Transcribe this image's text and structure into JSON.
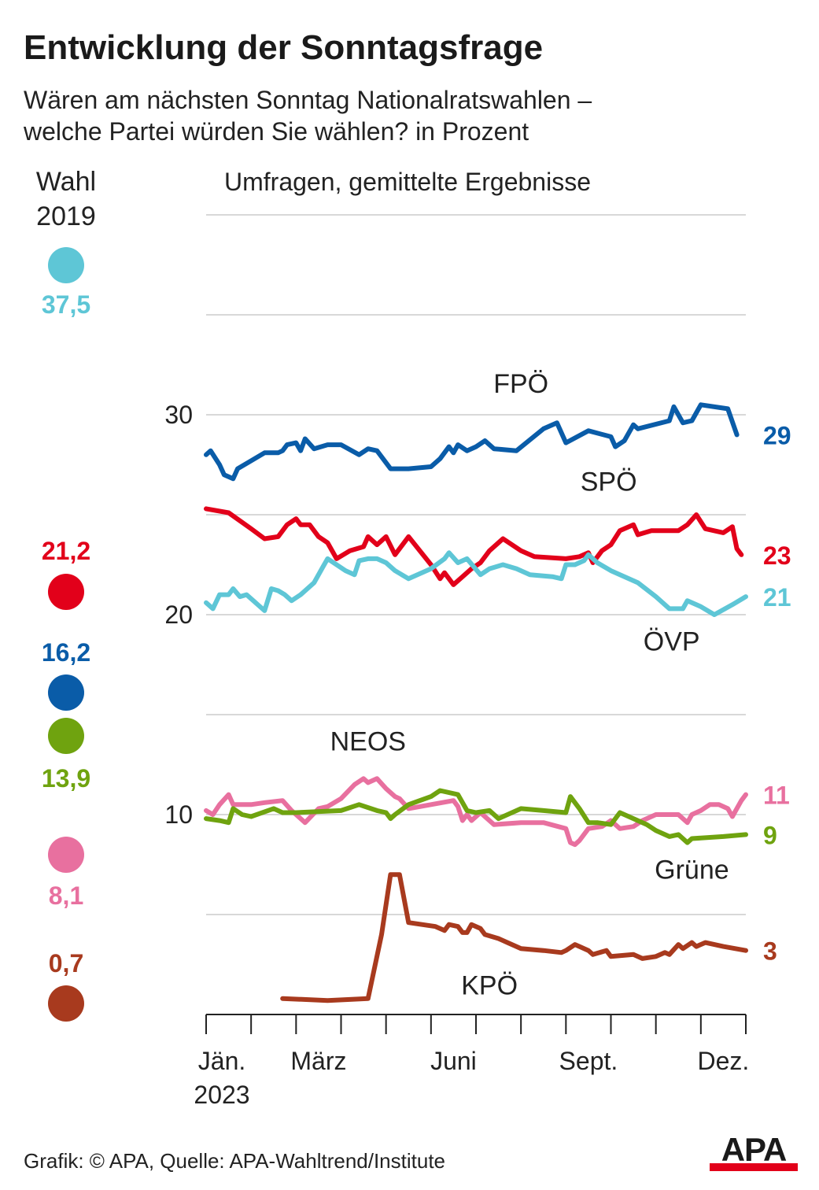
{
  "title": "Entwicklung der Sonntagsfrage",
  "subtitle_line1": "Wären am nächsten Sonntag Nationalratswahlen –",
  "subtitle_line2": "welche Partei würden Sie wählen? in Prozent",
  "source": "Grafik: © APA, Quelle: APA-Wahltrend/Institute",
  "logo_text": "APA",
  "chart_data": {
    "type": "line",
    "title": "Umfragen, gemittelte Ergebnisse",
    "x_unit": "months since start of January 2023",
    "xlim": [
      0,
      12
    ],
    "ylim": [
      0,
      40
    ],
    "y_ticks": [
      10,
      20,
      30
    ],
    "grid_values": [
      5,
      10,
      15,
      20,
      25,
      30,
      35,
      40
    ],
    "x_tick_labels": [
      {
        "label_key": "jan",
        "x": 0.35
      },
      {
        "label_key": "maerz",
        "x": 2.5
      },
      {
        "label_key": "juni",
        "x": 5.5
      },
      {
        "label_key": "sept",
        "x": 8.5
      },
      {
        "label_key": "dez",
        "x": 11.5
      }
    ],
    "tick_text": {
      "jan": "Jän.",
      "jan_year": "2023",
      "maerz": "März",
      "juni": "Juni",
      "sept": "Sept.",
      "dez": "Dez."
    },
    "election_header": [
      "Wahl",
      "2019"
    ],
    "election_2019": [
      {
        "party": "ÖVP",
        "value": "37,5",
        "color": "#5ec6d6"
      },
      {
        "party": "SPÖ",
        "value": "21,2",
        "color": "#e2001a"
      },
      {
        "party": "FPÖ",
        "value": "16,2",
        "color": "#0a5ca8"
      },
      {
        "party": "Grüne",
        "value": "13,9",
        "color": "#6fa30f"
      },
      {
        "party": "NEOS",
        "value": "8,1",
        "color": "#e8709f"
      },
      {
        "party": "KPÖ",
        "value": "0,7",
        "color": "#a83a1e"
      }
    ],
    "series": [
      {
        "name": "FPÖ",
        "color": "#0a5ca8",
        "end_label": "29",
        "points": [
          [
            0,
            28.0
          ],
          [
            0.1,
            28.2
          ],
          [
            0.3,
            27.5
          ],
          [
            0.4,
            27.0
          ],
          [
            0.6,
            26.8
          ],
          [
            0.7,
            27.3
          ],
          [
            1.0,
            27.7
          ],
          [
            1.3,
            28.1
          ],
          [
            1.6,
            28.1
          ],
          [
            1.7,
            28.2
          ],
          [
            1.8,
            28.5
          ],
          [
            2.0,
            28.6
          ],
          [
            2.1,
            28.2
          ],
          [
            2.2,
            28.8
          ],
          [
            2.4,
            28.3
          ],
          [
            2.7,
            28.5
          ],
          [
            3.0,
            28.5
          ],
          [
            3.4,
            28.0
          ],
          [
            3.6,
            28.3
          ],
          [
            3.8,
            28.2
          ],
          [
            4.1,
            27.3
          ],
          [
            4.5,
            27.3
          ],
          [
            5.0,
            27.4
          ],
          [
            5.2,
            27.8
          ],
          [
            5.4,
            28.4
          ],
          [
            5.5,
            28.1
          ],
          [
            5.6,
            28.5
          ],
          [
            5.8,
            28.2
          ],
          [
            6.0,
            28.4
          ],
          [
            6.2,
            28.7
          ],
          [
            6.4,
            28.3
          ],
          [
            6.9,
            28.2
          ],
          [
            7.5,
            29.3
          ],
          [
            7.8,
            29.6
          ],
          [
            8.0,
            28.6
          ],
          [
            8.5,
            29.2
          ],
          [
            9.0,
            28.9
          ],
          [
            9.1,
            28.4
          ],
          [
            9.3,
            28.7
          ],
          [
            9.5,
            29.5
          ],
          [
            9.6,
            29.3
          ],
          [
            10.3,
            29.7
          ],
          [
            10.4,
            30.4
          ],
          [
            10.6,
            29.6
          ],
          [
            10.8,
            29.7
          ],
          [
            11.0,
            30.5
          ],
          [
            11.6,
            30.3
          ],
          [
            11.8,
            29.0
          ]
        ]
      },
      {
        "name": "SPÖ",
        "color": "#e2001a",
        "end_label": "23",
        "points": [
          [
            0,
            25.3
          ],
          [
            0.5,
            25.1
          ],
          [
            1.0,
            24.3
          ],
          [
            1.3,
            23.8
          ],
          [
            1.6,
            23.9
          ],
          [
            1.8,
            24.5
          ],
          [
            2.0,
            24.8
          ],
          [
            2.1,
            24.5
          ],
          [
            2.3,
            24.5
          ],
          [
            2.5,
            23.9
          ],
          [
            2.7,
            23.6
          ],
          [
            2.9,
            22.8
          ],
          [
            3.2,
            23.2
          ],
          [
            3.5,
            23.4
          ],
          [
            3.6,
            23.9
          ],
          [
            3.8,
            23.5
          ],
          [
            4.0,
            23.9
          ],
          [
            4.2,
            23.0
          ],
          [
            4.5,
            23.9
          ],
          [
            5.0,
            22.5
          ],
          [
            5.2,
            21.8
          ],
          [
            5.3,
            22.1
          ],
          [
            5.5,
            21.5
          ],
          [
            5.7,
            21.9
          ],
          [
            5.9,
            22.3
          ],
          [
            6.1,
            22.6
          ],
          [
            6.3,
            23.2
          ],
          [
            6.6,
            23.8
          ],
          [
            7.0,
            23.2
          ],
          [
            7.3,
            22.9
          ],
          [
            8.0,
            22.8
          ],
          [
            8.3,
            22.9
          ],
          [
            8.5,
            23.1
          ],
          [
            8.6,
            22.6
          ],
          [
            8.8,
            23.2
          ],
          [
            9.0,
            23.5
          ],
          [
            9.2,
            24.2
          ],
          [
            9.5,
            24.5
          ],
          [
            9.6,
            24.0
          ],
          [
            9.9,
            24.2
          ],
          [
            10.5,
            24.2
          ],
          [
            10.7,
            24.5
          ],
          [
            10.9,
            25.0
          ],
          [
            11.1,
            24.3
          ],
          [
            11.5,
            24.1
          ],
          [
            11.7,
            24.4
          ],
          [
            11.8,
            23.3
          ],
          [
            11.9,
            23.0
          ]
        ]
      },
      {
        "name": "ÖVP",
        "color": "#5ec6d6",
        "end_label": "21",
        "points": [
          [
            0,
            20.6
          ],
          [
            0.15,
            20.3
          ],
          [
            0.3,
            21.0
          ],
          [
            0.5,
            21.0
          ],
          [
            0.6,
            21.3
          ],
          [
            0.75,
            20.9
          ],
          [
            0.9,
            21.0
          ],
          [
            1.0,
            20.8
          ],
          [
            1.15,
            20.5
          ],
          [
            1.3,
            20.2
          ],
          [
            1.45,
            21.3
          ],
          [
            1.6,
            21.2
          ],
          [
            1.75,
            21.0
          ],
          [
            1.9,
            20.7
          ],
          [
            2.1,
            21.0
          ],
          [
            2.4,
            21.6
          ],
          [
            2.6,
            22.4
          ],
          [
            2.7,
            22.8
          ],
          [
            2.9,
            22.5
          ],
          [
            3.1,
            22.2
          ],
          [
            3.3,
            22.0
          ],
          [
            3.4,
            22.7
          ],
          [
            3.6,
            22.8
          ],
          [
            3.8,
            22.8
          ],
          [
            4.0,
            22.6
          ],
          [
            4.2,
            22.2
          ],
          [
            4.5,
            21.8
          ],
          [
            5.0,
            22.3
          ],
          [
            5.3,
            22.8
          ],
          [
            5.4,
            23.1
          ],
          [
            5.6,
            22.6
          ],
          [
            5.8,
            22.8
          ],
          [
            6.1,
            22.0
          ],
          [
            6.3,
            22.3
          ],
          [
            6.6,
            22.5
          ],
          [
            6.9,
            22.3
          ],
          [
            7.2,
            22.0
          ],
          [
            7.7,
            21.9
          ],
          [
            7.9,
            21.8
          ],
          [
            8.0,
            22.5
          ],
          [
            8.2,
            22.5
          ],
          [
            8.4,
            22.7
          ],
          [
            8.5,
            23.0
          ],
          [
            8.7,
            22.6
          ],
          [
            9.0,
            22.2
          ],
          [
            9.6,
            21.6
          ],
          [
            10.0,
            20.9
          ],
          [
            10.3,
            20.3
          ],
          [
            10.6,
            20.3
          ],
          [
            10.7,
            20.7
          ],
          [
            10.9,
            20.5
          ],
          [
            11.0,
            20.4
          ],
          [
            11.3,
            20.0
          ],
          [
            11.7,
            20.5
          ],
          [
            12.0,
            20.9
          ]
        ]
      },
      {
        "name": "NEOS",
        "color": "#e8709f",
        "end_label": "11",
        "points": [
          [
            0,
            10.2
          ],
          [
            0.15,
            10.0
          ],
          [
            0.3,
            10.5
          ],
          [
            0.5,
            11.0
          ],
          [
            0.6,
            10.5
          ],
          [
            1.0,
            10.5
          ],
          [
            1.3,
            10.6
          ],
          [
            1.7,
            10.7
          ],
          [
            1.9,
            10.2
          ],
          [
            2.2,
            9.6
          ],
          [
            2.5,
            10.3
          ],
          [
            2.7,
            10.4
          ],
          [
            3.0,
            10.8
          ],
          [
            3.3,
            11.5
          ],
          [
            3.5,
            11.8
          ],
          [
            3.6,
            11.6
          ],
          [
            3.8,
            11.8
          ],
          [
            4.0,
            11.3
          ],
          [
            4.2,
            10.9
          ],
          [
            4.3,
            10.8
          ],
          [
            4.5,
            10.3
          ],
          [
            5.0,
            10.5
          ],
          [
            5.5,
            10.7
          ],
          [
            5.6,
            10.4
          ],
          [
            5.7,
            9.7
          ],
          [
            5.8,
            10.0
          ],
          [
            5.9,
            9.7
          ],
          [
            6.1,
            10.1
          ],
          [
            6.4,
            9.5
          ],
          [
            7.0,
            9.6
          ],
          [
            7.5,
            9.6
          ],
          [
            8.0,
            9.3
          ],
          [
            8.1,
            8.6
          ],
          [
            8.2,
            8.5
          ],
          [
            8.3,
            8.7
          ],
          [
            8.5,
            9.3
          ],
          [
            8.8,
            9.4
          ],
          [
            9.0,
            9.7
          ],
          [
            9.2,
            9.3
          ],
          [
            9.5,
            9.4
          ],
          [
            9.7,
            9.7
          ],
          [
            10.0,
            10.0
          ],
          [
            10.5,
            10.0
          ],
          [
            10.7,
            9.6
          ],
          [
            10.8,
            10.0
          ],
          [
            11.0,
            10.2
          ],
          [
            11.2,
            10.5
          ],
          [
            11.4,
            10.5
          ],
          [
            11.6,
            10.3
          ],
          [
            11.7,
            9.9
          ],
          [
            11.9,
            10.7
          ],
          [
            12.0,
            11.0
          ]
        ]
      },
      {
        "name": "Grüne",
        "color": "#6fa30f",
        "end_label": "9",
        "points": [
          [
            0,
            9.8
          ],
          [
            0.3,
            9.7
          ],
          [
            0.5,
            9.6
          ],
          [
            0.6,
            10.3
          ],
          [
            0.8,
            10.0
          ],
          [
            1.0,
            9.9
          ],
          [
            1.5,
            10.3
          ],
          [
            1.7,
            10.1
          ],
          [
            2.0,
            10.1
          ],
          [
            3.0,
            10.2
          ],
          [
            3.4,
            10.5
          ],
          [
            3.8,
            10.2
          ],
          [
            4.0,
            10.1
          ],
          [
            4.1,
            9.8
          ],
          [
            4.2,
            10.0
          ],
          [
            4.5,
            10.5
          ],
          [
            5.0,
            10.9
          ],
          [
            5.2,
            11.2
          ],
          [
            5.6,
            11.0
          ],
          [
            5.8,
            10.2
          ],
          [
            6.0,
            10.1
          ],
          [
            6.3,
            10.2
          ],
          [
            6.5,
            9.8
          ],
          [
            7.0,
            10.3
          ],
          [
            7.5,
            10.2
          ],
          [
            8.0,
            10.1
          ],
          [
            8.1,
            10.9
          ],
          [
            8.3,
            10.3
          ],
          [
            8.5,
            9.6
          ],
          [
            8.7,
            9.6
          ],
          [
            9.0,
            9.5
          ],
          [
            9.2,
            10.1
          ],
          [
            9.5,
            9.8
          ],
          [
            9.8,
            9.5
          ],
          [
            10.0,
            9.2
          ],
          [
            10.3,
            8.9
          ],
          [
            10.5,
            9.0
          ],
          [
            10.7,
            8.6
          ],
          [
            10.8,
            8.8
          ],
          [
            11.5,
            8.9
          ],
          [
            12.0,
            9.0
          ]
        ]
      },
      {
        "name": "KPÖ",
        "color": "#a83a1e",
        "end_label": "3",
        "points": [
          [
            1.7,
            0.8
          ],
          [
            2.7,
            0.7
          ],
          [
            3.6,
            0.8
          ],
          [
            3.9,
            4.0
          ],
          [
            4.1,
            7.0
          ],
          [
            4.3,
            7.0
          ],
          [
            4.5,
            4.6
          ],
          [
            5.1,
            4.4
          ],
          [
            5.3,
            4.2
          ],
          [
            5.4,
            4.5
          ],
          [
            5.6,
            4.4
          ],
          [
            5.7,
            4.1
          ],
          [
            5.8,
            4.1
          ],
          [
            5.9,
            4.5
          ],
          [
            6.1,
            4.3
          ],
          [
            6.2,
            4.0
          ],
          [
            6.5,
            3.8
          ],
          [
            6.7,
            3.6
          ],
          [
            7.0,
            3.3
          ],
          [
            7.5,
            3.2
          ],
          [
            7.9,
            3.1
          ],
          [
            8.0,
            3.2
          ],
          [
            8.2,
            3.5
          ],
          [
            8.3,
            3.4
          ],
          [
            8.5,
            3.2
          ],
          [
            8.6,
            3.0
          ],
          [
            8.9,
            3.2
          ],
          [
            9.0,
            2.9
          ],
          [
            9.5,
            3.0
          ],
          [
            9.7,
            2.8
          ],
          [
            10.0,
            2.9
          ],
          [
            10.2,
            3.1
          ],
          [
            10.3,
            3.0
          ],
          [
            10.5,
            3.5
          ],
          [
            10.6,
            3.3
          ],
          [
            10.8,
            3.6
          ],
          [
            10.9,
            3.4
          ],
          [
            11.1,
            3.6
          ],
          [
            11.5,
            3.4
          ],
          [
            12.0,
            3.2
          ]
        ]
      }
    ],
    "line_labels": [
      {
        "text": "FPÖ",
        "x": 7.0,
        "y": 31.1,
        "anchor": "middle"
      },
      {
        "text": "SPÖ",
        "x": 8.95,
        "y": 26.2,
        "anchor": "middle"
      },
      {
        "text": "ÖVP",
        "x": 10.35,
        "y": 18.2,
        "anchor": "middle"
      },
      {
        "text": "NEOS",
        "x": 3.6,
        "y": 13.2,
        "anchor": "middle"
      },
      {
        "text": "Grüne",
        "x": 10.8,
        "y": 6.8,
        "anchor": "middle"
      },
      {
        "text": "KPÖ",
        "x": 6.3,
        "y": 1.0,
        "anchor": "middle"
      }
    ]
  }
}
